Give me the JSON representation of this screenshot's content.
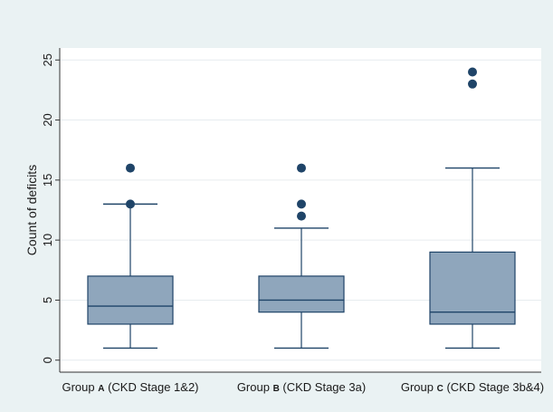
{
  "chart_data": {
    "type": "box",
    "ylabel": "Count of deficits",
    "ylim": [
      -1,
      26
    ],
    "yticks": [
      0,
      5,
      10,
      15,
      20,
      25
    ],
    "grid": true,
    "colors": {
      "background": "#eaf2f3",
      "plot_area": "#ffffff",
      "box_fill": "#8fa6bc",
      "box_stroke": "#1f4468",
      "outlier": "#1f4468",
      "grid": "#e6ecef"
    },
    "groups": [
      {
        "label_parts": [
          "Group ",
          "A",
          " (CKD Stage 1&2)"
        ],
        "min": 1,
        "q1": 3,
        "median": 4.5,
        "q3": 7,
        "max": 13,
        "outliers": [
          13,
          16
        ]
      },
      {
        "label_parts": [
          "Group ",
          "B",
          " (CKD Stage 3a)"
        ],
        "min": 1,
        "q1": 4,
        "median": 5,
        "q3": 7,
        "max": 11,
        "outliers": [
          12,
          13,
          16
        ]
      },
      {
        "label_parts": [
          "Group ",
          "C",
          " (CKD Stage 3b&4)"
        ],
        "min": 1,
        "q1": 3,
        "median": 4,
        "q3": 9,
        "max": 16,
        "outliers": [
          23,
          24
        ]
      }
    ]
  }
}
